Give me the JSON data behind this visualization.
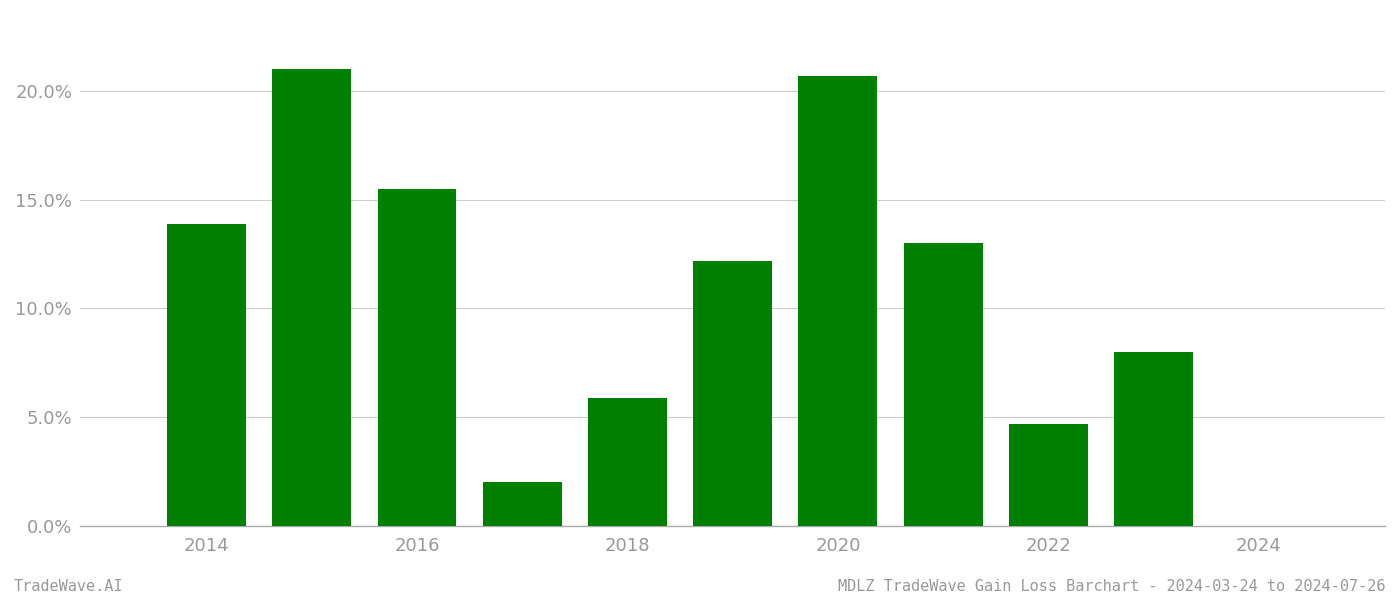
{
  "years": [
    2014,
    2015,
    2016,
    2017,
    2018,
    2019,
    2020,
    2021,
    2022,
    2023
  ],
  "values": [
    0.139,
    0.21,
    0.155,
    0.02,
    0.059,
    0.122,
    0.207,
    0.13,
    0.047,
    0.08
  ],
  "bar_color": "#008000",
  "background_color": "#ffffff",
  "ylim": [
    0,
    0.235
  ],
  "yticks": [
    0.0,
    0.05,
    0.1,
    0.15,
    0.2
  ],
  "grid_color": "#cccccc",
  "axis_color": "#aaaaaa",
  "tick_color": "#999999",
  "footer_left": "TradeWave.AI",
  "footer_right": "MDLZ TradeWave Gain Loss Barchart - 2024-03-24 to 2024-07-26",
  "footer_fontsize": 11,
  "bar_width": 0.75,
  "xlim": [
    2012.8,
    2025.2
  ],
  "xtick_positions": [
    2014,
    2016,
    2018,
    2020,
    2022,
    2024
  ]
}
